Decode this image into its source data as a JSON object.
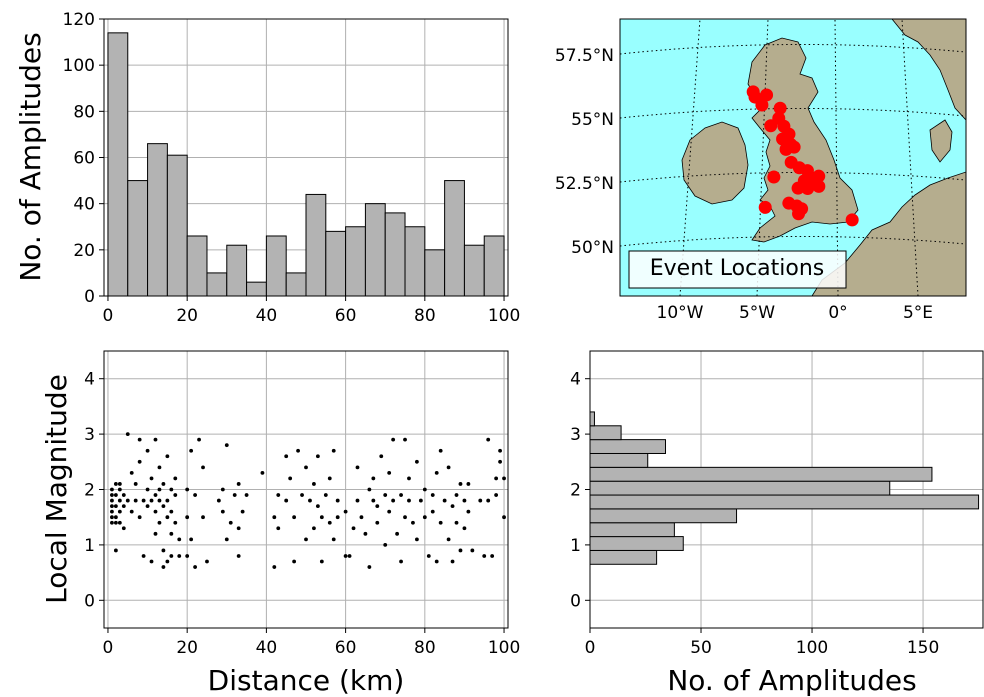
{
  "chart_data": [
    {
      "type": "bar",
      "panel": "distance-histogram",
      "bin_edges": [
        0,
        5,
        10,
        15,
        20,
        25,
        30,
        35,
        40,
        45,
        50,
        55,
        60,
        65,
        70,
        75,
        80,
        85,
        90,
        95,
        100
      ],
      "values": [
        114,
        50,
        66,
        61,
        26,
        10,
        22,
        6,
        26,
        10,
        44,
        28,
        30,
        40,
        36,
        30,
        20,
        50,
        22,
        26
      ],
      "xlim": [
        -1,
        101
      ],
      "ylim": [
        0,
        120
      ],
      "xticks": [
        "0",
        "20",
        "40",
        "60",
        "80",
        "100"
      ],
      "yticks": [
        "0",
        "20",
        "40",
        "60",
        "80",
        "100",
        "120"
      ],
      "xlabel": "",
      "ylabel": "No. of Amplitudes",
      "grid": true,
      "bar_color": "#b3b3b3"
    },
    {
      "type": "scatter",
      "panel": "event-map",
      "label": "Event Locations",
      "lat_ticks": [
        "57.5°N",
        "55°N",
        "52.5°N",
        "50°N"
      ],
      "lon_ticks": [
        "10°W",
        "5°W",
        "0°",
        "5°E"
      ],
      "sea_color": "#99ffff",
      "land_color": "#b5ad8e",
      "marker_color": "#ff0000",
      "events": [
        {
          "lon": -5.1,
          "lat": 55.9
        },
        {
          "lon": -5.0,
          "lat": 55.7
        },
        {
          "lon": -4.3,
          "lat": 55.8
        },
        {
          "lon": -4.6,
          "lat": 55.4
        },
        {
          "lon": -3.5,
          "lat": 55.3
        },
        {
          "lon": -3.6,
          "lat": 54.9
        },
        {
          "lon": -3.3,
          "lat": 54.6
        },
        {
          "lon": -4.1,
          "lat": 54.6
        },
        {
          "lon": -3.0,
          "lat": 54.3
        },
        {
          "lon": -3.4,
          "lat": 54.1
        },
        {
          "lon": -2.9,
          "lat": 53.9
        },
        {
          "lon": -3.2,
          "lat": 53.7
        },
        {
          "lon": -2.7,
          "lat": 53.8
        },
        {
          "lon": -2.9,
          "lat": 53.2
        },
        {
          "lon": -2.4,
          "lat": 53.0
        },
        {
          "lon": -1.9,
          "lat": 52.9
        },
        {
          "lon": -1.6,
          "lat": 52.6
        },
        {
          "lon": -1.2,
          "lat": 52.7
        },
        {
          "lon": -1.2,
          "lat": 52.3
        },
        {
          "lon": -2.1,
          "lat": 52.5
        },
        {
          "lon": -2.5,
          "lat": 52.2
        },
        {
          "lon": -1.9,
          "lat": 52.2
        },
        {
          "lon": -4.0,
          "lat": 52.6
        },
        {
          "lon": -3.1,
          "lat": 51.6
        },
        {
          "lon": -2.6,
          "lat": 51.5
        },
        {
          "lon": -2.3,
          "lat": 51.4
        },
        {
          "lon": -2.5,
          "lat": 51.2
        },
        {
          "lon": -4.6,
          "lat": 51.4
        },
        {
          "lon": 0.9,
          "lat": 51.0
        }
      ]
    },
    {
      "type": "scatter",
      "panel": "magnitude-vs-distance",
      "xlim": [
        -1,
        101
      ],
      "ylim": [
        -0.5,
        4.5
      ],
      "xticks": [
        "0",
        "20",
        "40",
        "60",
        "80",
        "100"
      ],
      "yticks": [
        "0",
        "1",
        "2",
        "3",
        "4"
      ],
      "xlabel": "Distance (km)",
      "ylabel": "Local Magnitude",
      "grid": true,
      "points": [
        [
          1,
          1.9
        ],
        [
          1,
          1.8
        ],
        [
          1,
          1.7
        ],
        [
          1,
          1.6
        ],
        [
          1,
          1.5
        ],
        [
          1,
          1.4
        ],
        [
          1,
          2.0
        ],
        [
          2,
          2.1
        ],
        [
          2,
          1.9
        ],
        [
          2,
          1.7
        ],
        [
          2,
          1.5
        ],
        [
          2,
          1.4
        ],
        [
          2,
          0.9
        ],
        [
          3,
          1.8
        ],
        [
          3,
          1.6
        ],
        [
          3,
          2.0
        ],
        [
          3,
          1.4
        ],
        [
          3,
          2.1
        ],
        [
          4,
          1.7
        ],
        [
          4,
          1.9
        ],
        [
          4,
          1.3
        ],
        [
          5,
          1.8
        ],
        [
          5,
          3.0
        ],
        [
          6,
          2.3
        ],
        [
          6,
          1.6
        ],
        [
          7,
          1.8
        ],
        [
          7,
          2.1
        ],
        [
          8,
          2.9
        ],
        [
          8,
          1.5
        ],
        [
          8,
          2.5
        ],
        [
          9,
          1.8
        ],
        [
          9,
          0.8
        ],
        [
          10,
          2.0
        ],
        [
          10,
          1.7
        ],
        [
          10,
          2.7
        ],
        [
          11,
          1.8
        ],
        [
          11,
          2.2
        ],
        [
          11,
          0.7
        ],
        [
          12,
          1.9
        ],
        [
          12,
          1.6
        ],
        [
          12,
          2.9
        ],
        [
          12,
          1.2
        ],
        [
          13,
          2.0
        ],
        [
          13,
          1.8
        ],
        [
          13,
          1.4
        ],
        [
          13,
          2.4
        ],
        [
          14,
          1.7
        ],
        [
          14,
          2.1
        ],
        [
          14,
          0.9
        ],
        [
          14,
          0.6
        ],
        [
          15,
          1.8
        ],
        [
          15,
          1.5
        ],
        [
          15,
          2.6
        ],
        [
          15,
          0.7
        ],
        [
          16,
          2.0
        ],
        [
          16,
          1.6
        ],
        [
          16,
          1.2
        ],
        [
          16,
          0.8
        ],
        [
          17,
          1.9
        ],
        [
          17,
          1.4
        ],
        [
          17,
          2.2
        ],
        [
          18,
          1.1
        ],
        [
          18,
          0.8
        ],
        [
          20,
          1.5
        ],
        [
          20,
          2.0
        ],
        [
          20,
          0.8
        ],
        [
          21,
          1.1
        ],
        [
          21,
          2.7
        ],
        [
          22,
          1.9
        ],
        [
          22,
          0.6
        ],
        [
          23,
          2.9
        ],
        [
          24,
          1.5
        ],
        [
          24,
          2.4
        ],
        [
          25,
          0.7
        ],
        [
          28,
          1.8
        ],
        [
          29,
          2.0
        ],
        [
          29,
          1.6
        ],
        [
          30,
          1.1
        ],
        [
          30,
          2.8
        ],
        [
          31,
          1.4
        ],
        [
          32,
          1.9
        ],
        [
          33,
          2.1
        ],
        [
          33,
          0.8
        ],
        [
          33,
          1.3
        ],
        [
          34,
          1.6
        ],
        [
          35,
          1.9
        ],
        [
          39,
          2.3
        ],
        [
          42,
          1.5
        ],
        [
          42,
          0.6
        ],
        [
          43,
          1.9
        ],
        [
          43,
          1.3
        ],
        [
          45,
          1.8
        ],
        [
          45,
          2.6
        ],
        [
          46,
          2.2
        ],
        [
          47,
          0.7
        ],
        [
          47,
          1.5
        ],
        [
          48,
          2.7
        ],
        [
          49,
          1.9
        ],
        [
          50,
          1.1
        ],
        [
          50,
          2.4
        ],
        [
          51,
          1.8
        ],
        [
          52,
          2.1
        ],
        [
          52,
          1.3
        ],
        [
          53,
          1.7
        ],
        [
          53,
          2.6
        ],
        [
          54,
          1.5
        ],
        [
          54,
          0.7
        ],
        [
          55,
          1.9
        ],
        [
          56,
          2.2
        ],
        [
          56,
          1.4
        ],
        [
          57,
          2.7
        ],
        [
          57,
          1.1
        ],
        [
          58,
          1.8
        ],
        [
          58,
          1.5
        ],
        [
          60,
          0.8
        ],
        [
          60,
          1.6
        ],
        [
          61,
          0.8
        ],
        [
          62,
          1.3
        ],
        [
          63,
          1.8
        ],
        [
          63,
          2.4
        ],
        [
          64,
          1.5
        ],
        [
          65,
          1.2
        ],
        [
          66,
          2.0
        ],
        [
          66,
          0.6
        ],
        [
          67,
          1.8
        ],
        [
          67,
          2.2
        ],
        [
          68,
          1.4
        ],
        [
          68,
          1.7
        ],
        [
          69,
          2.6
        ],
        [
          70,
          1.9
        ],
        [
          70,
          1.0
        ],
        [
          71,
          1.6
        ],
        [
          71,
          2.3
        ],
        [
          72,
          2.9
        ],
        [
          72,
          1.8
        ],
        [
          73,
          1.2
        ],
        [
          74,
          1.9
        ],
        [
          74,
          0.7
        ],
        [
          75,
          2.9
        ],
        [
          75,
          1.5
        ],
        [
          76,
          1.8
        ],
        [
          76,
          2.2
        ],
        [
          77,
          1.4
        ],
        [
          78,
          2.5
        ],
        [
          78,
          1.1
        ],
        [
          79,
          1.8
        ],
        [
          80,
          2.0
        ],
        [
          80,
          1.5
        ],
        [
          81,
          0.8
        ],
        [
          82,
          1.9
        ],
        [
          82,
          1.6
        ],
        [
          83,
          2.3
        ],
        [
          83,
          0.7
        ],
        [
          84,
          2.7
        ],
        [
          84,
          1.4
        ],
        [
          85,
          1.8
        ],
        [
          86,
          1.1
        ],
        [
          86,
          2.4
        ],
        [
          87,
          1.7
        ],
        [
          87,
          0.7
        ],
        [
          88,
          1.9
        ],
        [
          88,
          1.4
        ],
        [
          89,
          2.1
        ],
        [
          89,
          0.9
        ],
        [
          90,
          1.8
        ],
        [
          90,
          1.3
        ],
        [
          91,
          2.1
        ],
        [
          91,
          1.6
        ],
        [
          92,
          0.9
        ],
        [
          94,
          1.8
        ],
        [
          95,
          0.8
        ],
        [
          96,
          2.9
        ],
        [
          96,
          1.8
        ],
        [
          97,
          0.8
        ],
        [
          98,
          2.2
        ],
        [
          98,
          1.9
        ],
        [
          99,
          2.5
        ],
        [
          99,
          2.7
        ],
        [
          100,
          1.5
        ],
        [
          100,
          2.2
        ]
      ]
    },
    {
      "type": "bar",
      "orientation": "horizontal",
      "panel": "magnitude-histogram",
      "bin_edges": [
        0.65,
        0.9,
        1.15,
        1.4,
        1.65,
        1.9,
        2.15,
        2.4,
        2.65,
        2.9,
        3.15,
        3.4
      ],
      "values": [
        30,
        42,
        38,
        66,
        175,
        135,
        154,
        26,
        34,
        14,
        2
      ],
      "xlim": [
        0,
        177
      ],
      "ylim": [
        -0.5,
        4.5
      ],
      "xticks": [
        "0",
        "50",
        "100",
        "150"
      ],
      "yticks": [
        "0",
        "1",
        "2",
        "3",
        "4"
      ],
      "xlabel": "No. of Amplitudes",
      "ylabel": "",
      "grid": true,
      "bar_color": "#b3b3b3"
    }
  ]
}
